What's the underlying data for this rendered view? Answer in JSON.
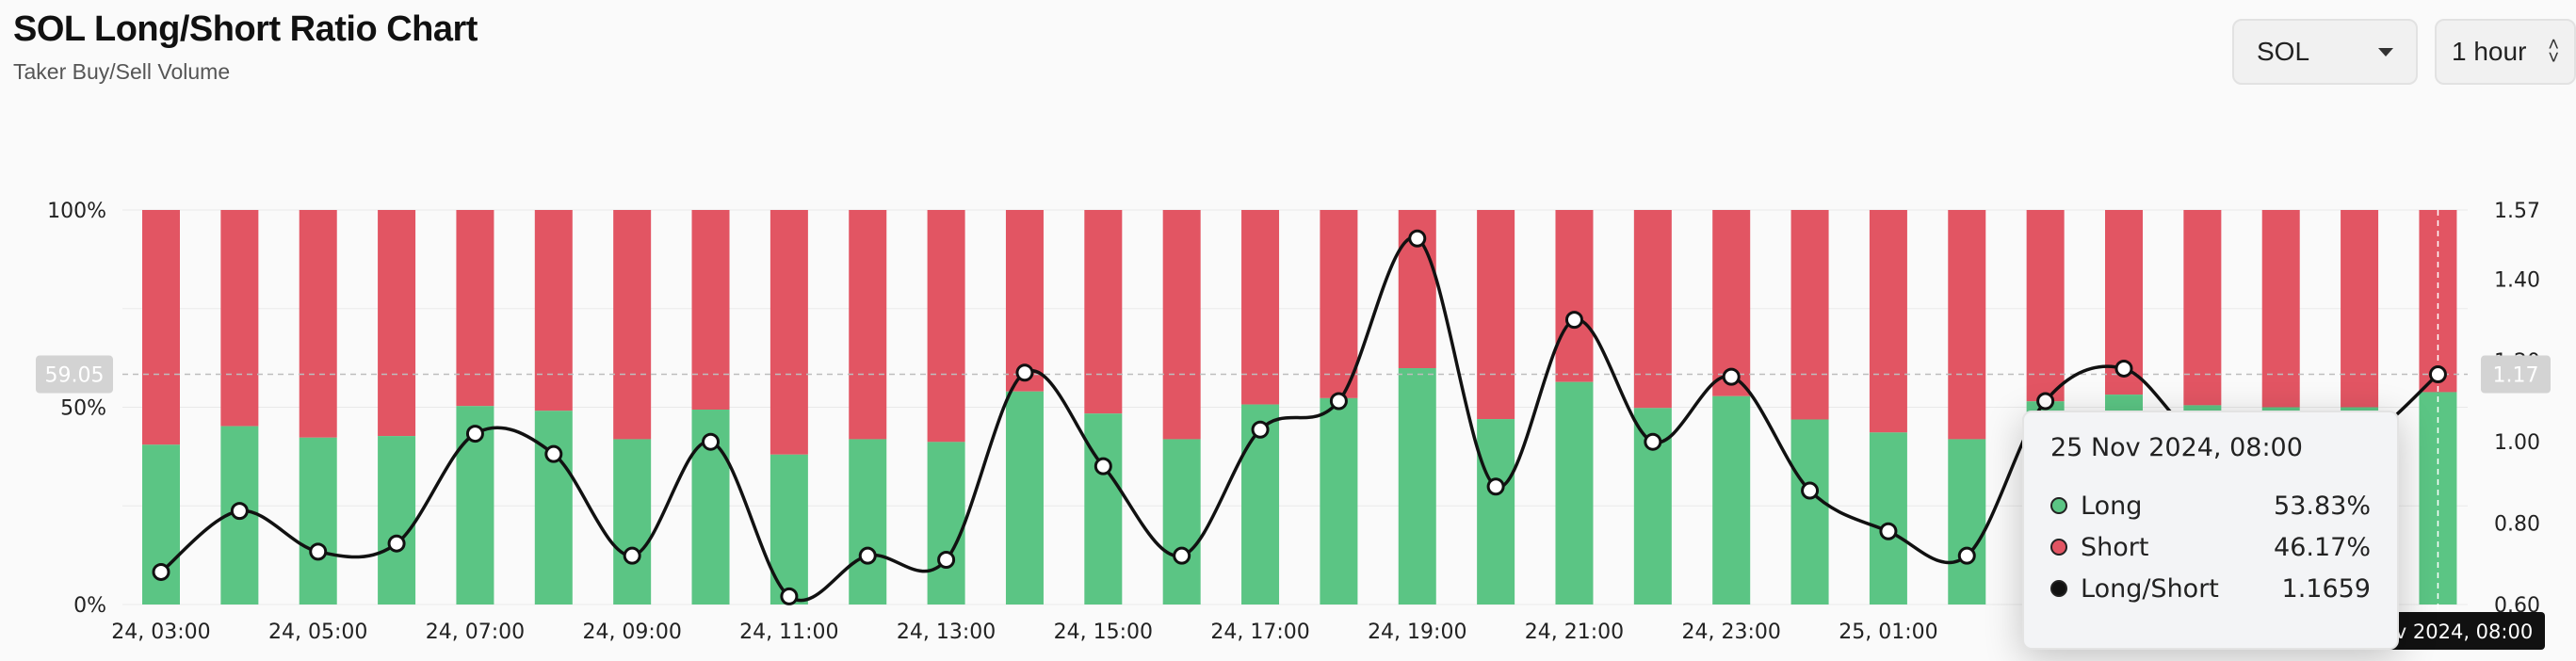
{
  "header": {
    "title": "SOL Long/Short Ratio Chart",
    "subtitle": "Taker Buy/Sell Volume"
  },
  "controls": {
    "symbol": "SOL",
    "interval": "1 hour"
  },
  "tooltip": {
    "title": "25 Nov 2024, 08:00",
    "rows": [
      {
        "label": "Long",
        "value": "53.83%",
        "color": "#5bc584"
      },
      {
        "label": "Short",
        "value": "46.17%",
        "color": "#e25563"
      },
      {
        "label": "Long/Short",
        "value": "1.1659",
        "color": "#111111"
      }
    ]
  },
  "crosshair": {
    "left_value": "59.05",
    "right_value": "1.17",
    "x_label": "25 Nov 2024, 08:00"
  },
  "colors": {
    "long": "#5bc584",
    "short": "#e25563",
    "ratio_line": "#111111",
    "background": "#fafafa"
  },
  "chart_data": {
    "type": "bar",
    "stacked": true,
    "percent_axis": {
      "ticks": [
        "0%",
        "50%",
        "100%"
      ],
      "range": [
        0,
        100
      ]
    },
    "ratio_axis": {
      "ticks": [
        "0.60",
        "0.80",
        "1.00",
        "1.20",
        "1.40",
        "1.57"
      ],
      "range": [
        0.6,
        1.57
      ]
    },
    "x_tick_labels": [
      "24, 03:00",
      "24, 05:00",
      "24, 07:00",
      "24, 09:00",
      "24, 11:00",
      "24, 13:00",
      "24, 15:00",
      "24, 17:00",
      "24, 19:00",
      "24, 21:00",
      "24, 23:00",
      "25, 01:00",
      "25"
    ],
    "categories": [
      "24, 03:00",
      "24, 04:00",
      "24, 05:00",
      "24, 06:00",
      "24, 07:00",
      "24, 08:00",
      "24, 09:00",
      "24, 10:00",
      "24, 11:00",
      "24, 12:00",
      "24, 13:00",
      "24, 14:00",
      "24, 15:00",
      "24, 16:00",
      "24, 17:00",
      "24, 18:00",
      "24, 19:00",
      "24, 20:00",
      "24, 21:00",
      "24, 22:00",
      "24, 23:00",
      "25, 00:00",
      "25, 01:00",
      "25, 02:00",
      "25, 03:00",
      "25, 04:00",
      "25, 05:00",
      "25, 06:00",
      "25, 07:00",
      "25, 08:00"
    ],
    "series": [
      {
        "name": "Long",
        "values": [
          40.5,
          45.2,
          42.3,
          42.7,
          50.3,
          49.1,
          41.9,
          49.4,
          38.0,
          41.9,
          41.2,
          54.0,
          48.4,
          41.9,
          50.7,
          52.3,
          59.9,
          47.0,
          56.4,
          49.8,
          52.8,
          46.9,
          43.6,
          41.9,
          51.5,
          53.2,
          50.5,
          50.0,
          50.0,
          53.83
        ]
      },
      {
        "name": "Short",
        "values": [
          59.5,
          54.8,
          57.7,
          57.3,
          49.7,
          50.9,
          58.1,
          50.6,
          62.0,
          58.1,
          58.8,
          46.0,
          51.6,
          58.1,
          49.3,
          47.7,
          40.1,
          53.0,
          43.6,
          50.2,
          47.2,
          53.1,
          56.4,
          58.1,
          48.5,
          46.8,
          49.5,
          50.0,
          50.0,
          46.17
        ]
      },
      {
        "name": "Long/Short",
        "values": [
          0.68,
          0.83,
          0.73,
          0.75,
          1.02,
          0.97,
          0.72,
          1.0,
          0.62,
          0.72,
          0.71,
          1.17,
          0.94,
          0.72,
          1.03,
          1.1,
          1.5,
          0.89,
          1.3,
          1.0,
          1.16,
          0.88,
          0.78,
          0.72,
          1.1,
          1.18,
          1.0,
          1.0,
          1.0,
          1.1659
        ]
      }
    ]
  }
}
